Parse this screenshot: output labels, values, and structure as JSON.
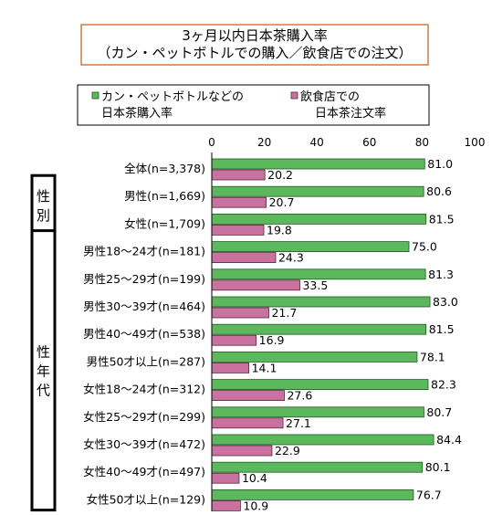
{
  "chart_data": {
    "type": "bar",
    "orientation": "horizontal",
    "title": "3ヶ月以内日本茶購入率（カン・ペットボトルでの購入／飲食店での注文）",
    "title_lines": [
      "3ヶ月以内日本茶購入率",
      "（カン・ペットボトルでの購入／飲食店での注文）"
    ],
    "xlim": [
      0,
      100
    ],
    "xticks": [
      0,
      20,
      40,
      60,
      80,
      100
    ],
    "grid": false,
    "legend_position": "top",
    "categories": [
      "全体(n=3,378)",
      "男性(n=1,669)",
      "女性(n=1,709)",
      "男性18～24才(n=181)",
      "男性25～29才(n=199)",
      "男性30～39才(n=464)",
      "男性40～49才(n=538)",
      "男性50才以上(n=287)",
      "女性18～24才(n=312)",
      "女性25～29才(n=299)",
      "女性30～39才(n=472)",
      "女性40～49才(n=497)",
      "女性50才以上(n=129)"
    ],
    "series": [
      {
        "name": "カン・ペットボトルなどの日本茶購入率",
        "legend_lines": [
          "カン・ペットボトルなどの",
          "日本茶購入率"
        ],
        "color": "#5cb85c",
        "values": [
          81.0,
          80.6,
          81.5,
          75.0,
          81.3,
          83.0,
          81.5,
          78.1,
          82.3,
          80.7,
          84.4,
          80.1,
          76.7
        ],
        "labels": [
          "81.0",
          "80.6",
          "81.5",
          "75.0",
          "81.3",
          "83.0",
          "81.5",
          "78.1",
          "82.3",
          "80.7",
          "84.4",
          "80.1",
          "76.7"
        ]
      },
      {
        "name": "飲食店での日本茶注文率",
        "legend_lines": [
          "飲食店での",
          "日本茶注文率"
        ],
        "color": "#c9719f",
        "values": [
          20.2,
          20.7,
          19.8,
          24.3,
          33.5,
          21.7,
          16.9,
          14.1,
          27.6,
          27.1,
          22.9,
          10.4,
          10.9
        ],
        "labels": [
          "20.2",
          "20.7",
          "19.8",
          "24.3",
          "33.5",
          "21.7",
          "16.9",
          "14.1",
          "27.6",
          "27.1",
          "22.9",
          "10.4",
          "10.9"
        ]
      }
    ],
    "groups": [
      {
        "label": "性別",
        "chars": [
          "性",
          "別"
        ],
        "start": 1,
        "end": 2
      },
      {
        "label": "性年代",
        "chars": [
          "性",
          "年",
          "代"
        ],
        "start": 3,
        "end": 12
      }
    ]
  }
}
